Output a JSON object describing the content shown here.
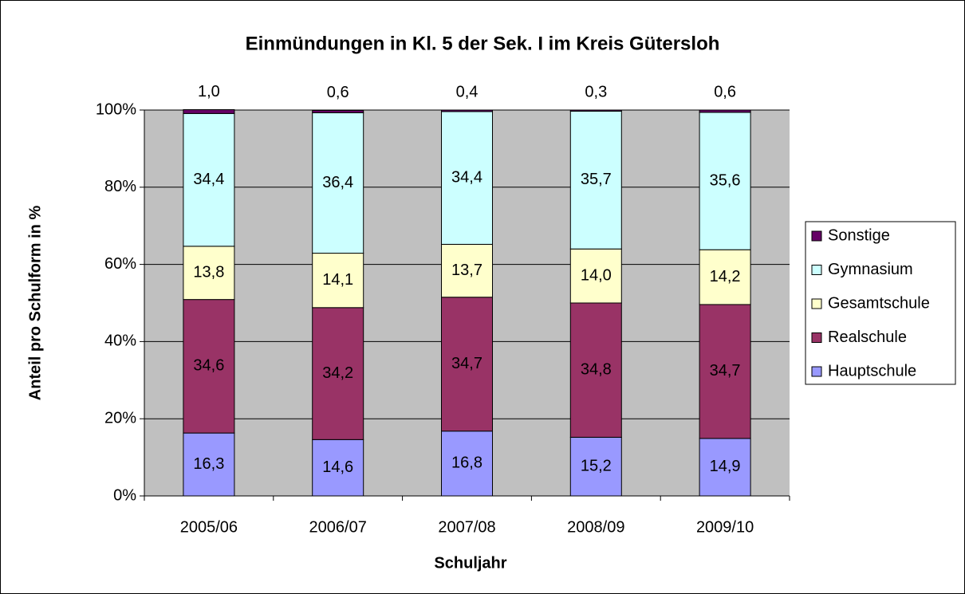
{
  "chart_data": {
    "type": "stacked_bar",
    "title": "Einmündungen in Kl. 5 der Sek. I im Kreis Gütersloh",
    "x_label": "Schuljahr",
    "y_label": "Anteil pro Schulform in %",
    "categories": [
      "2005/06",
      "2006/07",
      "2007/08",
      "2008/09",
      "2009/10"
    ],
    "series": [
      {
        "name": "Hauptschule",
        "color": "#9999ff",
        "values": [
          16.3,
          14.6,
          16.8,
          15.2,
          14.9
        ],
        "value_labels": [
          "16,3",
          "14,6",
          "16,8",
          "15,2",
          "14,9"
        ]
      },
      {
        "name": "Realschule",
        "color": "#993366",
        "values": [
          34.6,
          34.2,
          34.7,
          34.8,
          34.7
        ],
        "value_labels": [
          "34,6",
          "34,2",
          "34,7",
          "34,8",
          "34,7"
        ]
      },
      {
        "name": "Gesamtschule",
        "color": "#ffffcc",
        "values": [
          13.8,
          14.1,
          13.7,
          14.0,
          14.2
        ],
        "value_labels": [
          "13,8",
          "14,1",
          "13,7",
          "14,0",
          "14,2"
        ]
      },
      {
        "name": "Gymnasium",
        "color": "#ccffff",
        "values": [
          34.4,
          36.4,
          34.4,
          35.7,
          35.6
        ],
        "value_labels": [
          "34,4",
          "36,4",
          "34,4",
          "35,7",
          "35,6"
        ]
      },
      {
        "name": "Sonstige",
        "color": "#660066",
        "values": [
          1.0,
          0.6,
          0.4,
          0.3,
          0.6
        ],
        "value_labels": [
          "1,0",
          "0,6",
          "0,4",
          "0,3",
          "0,6"
        ]
      }
    ],
    "ylim": [
      0,
      100
    ],
    "yticks": [
      {
        "value": 0,
        "label": "0%"
      },
      {
        "value": 20,
        "label": "20%"
      },
      {
        "value": 40,
        "label": "40%"
      },
      {
        "value": 60,
        "label": "60%"
      },
      {
        "value": 80,
        "label": "80%"
      },
      {
        "value": 100,
        "label": "100%"
      }
    ],
    "grid": true,
    "legend": "right"
  }
}
